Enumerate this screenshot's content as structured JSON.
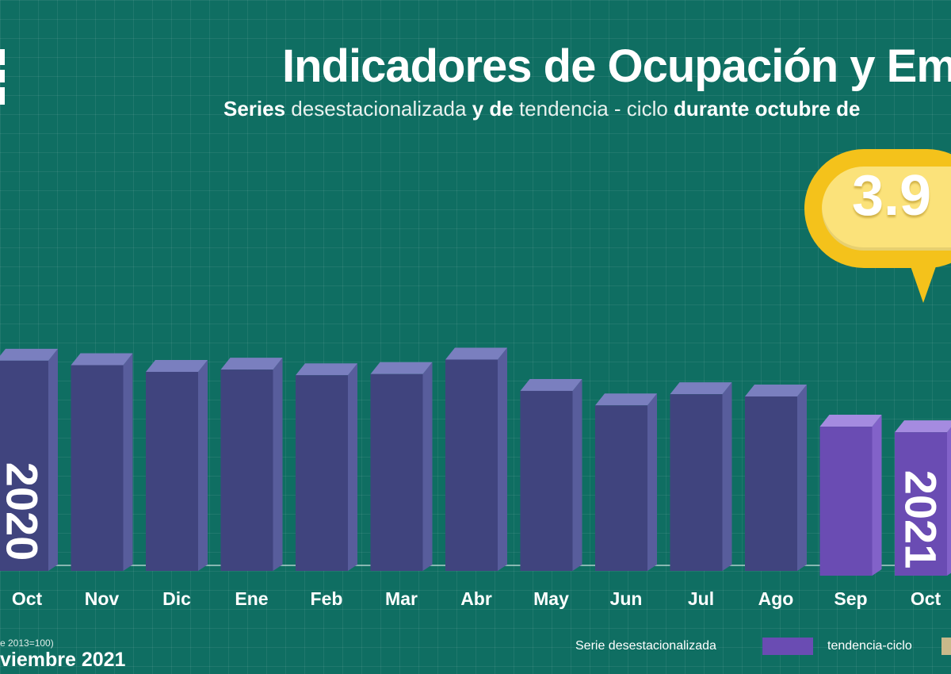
{
  "header": {
    "title": "Indicadores de Ocupación y Emp",
    "subtitle_parts": [
      {
        "text": "Series ",
        "bold": true
      },
      {
        "text": "desestacionalizada ",
        "bold": false
      },
      {
        "text": "y de ",
        "bold": true
      },
      {
        "text": "tendencia - ciclo ",
        "bold": false
      },
      {
        "text": "durante octubre de",
        "bold": true
      }
    ]
  },
  "callout": {
    "value": "3.9"
  },
  "chart_data": {
    "type": "bar",
    "categories": [
      "Oct",
      "Nov",
      "Dic",
      "Ene",
      "Feb",
      "Mar",
      "Abr",
      "May",
      "Jun",
      "Jul",
      "Ago",
      "Sep",
      "Oct"
    ],
    "series": [
      {
        "values": [
          96.5,
          94.5,
          91.5,
          92.5,
          90.0,
          90.5,
          97.0,
          83.0,
          76.5,
          81.5,
          80.5,
          67.0,
          64.5
        ]
      }
    ],
    "highlight_from_index": 11,
    "year_labels": [
      {
        "text": "2020",
        "index": 0
      },
      {
        "text": "2021",
        "index": 12
      }
    ],
    "ylim": [
      0,
      100
    ],
    "colors": {
      "bar": "#40447e",
      "bar_side": "#585d9c",
      "bar_top": "#7a7fbf",
      "highlight": "#6a4cb3",
      "highlight_side": "#8262c9",
      "highlight_top": "#a58be0"
    }
  },
  "footer": {
    "note": "e 2013=100)",
    "date": "viembre 2021"
  },
  "legend": [
    {
      "label": "Serie desestacionalizada",
      "color": "#6a4cb3"
    },
    {
      "label": "tendencia-ciclo",
      "color": "#c9b98a"
    }
  ]
}
